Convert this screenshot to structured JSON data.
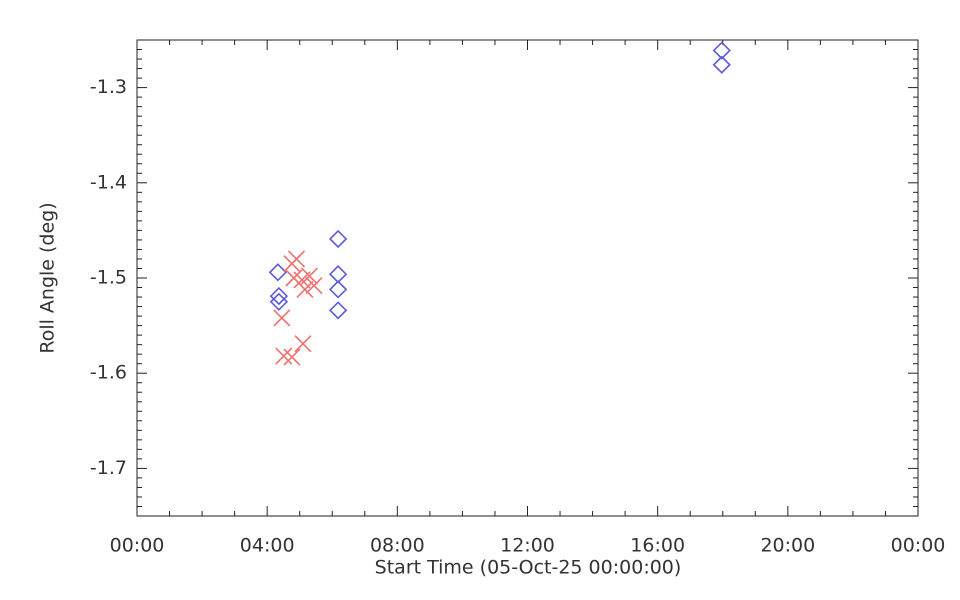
{
  "chart_data": {
    "type": "scatter",
    "xlabel": "Start Time (05-Oct-25 00:00:00)",
    "ylabel": "Roll Angle (deg)",
    "xlim": [
      0,
      24
    ],
    "xticks": [
      {
        "value": 0,
        "label": "00:00"
      },
      {
        "value": 4,
        "label": "04:00"
      },
      {
        "value": 8,
        "label": "08:00"
      },
      {
        "value": 12,
        "label": "12:00"
      },
      {
        "value": 16,
        "label": "16:00"
      },
      {
        "value": 20,
        "label": "20:00"
      },
      {
        "value": 24,
        "label": "00:00"
      }
    ],
    "ylim": [
      -1.75,
      -1.25
    ],
    "yticks": [
      -1.7,
      -1.6,
      -1.5,
      -1.4,
      -1.3
    ],
    "series": [
      {
        "marker": "diamond",
        "color": "#5a5ae0",
        "x": [
          4.33,
          4.36,
          4.36,
          6.18,
          6.18,
          6.18,
          6.18,
          17.97,
          17.97
        ],
        "values": [
          -1.494,
          -1.519,
          -1.525,
          -1.459,
          -1.496,
          -1.512,
          -1.534,
          -1.261,
          -1.276
        ]
      },
      {
        "marker": "cross",
        "color": "#f07070",
        "x": [
          4.45,
          4.51,
          4.76,
          4.76,
          4.82,
          4.9,
          5.07,
          5.1,
          5.16,
          5.3,
          5.44
        ],
        "values": [
          -1.542,
          -1.582,
          -1.485,
          -1.583,
          -1.5,
          -1.48,
          -1.502,
          -1.569,
          -1.512,
          -1.498,
          -1.508
        ]
      }
    ]
  }
}
